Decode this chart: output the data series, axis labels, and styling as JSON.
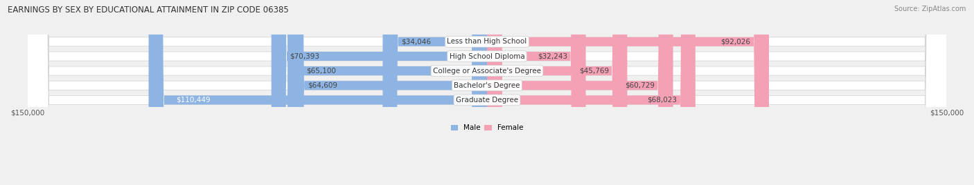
{
  "title": "EARNINGS BY SEX BY EDUCATIONAL ATTAINMENT IN ZIP CODE 06385",
  "source": "Source: ZipAtlas.com",
  "categories": [
    "Less than High School",
    "High School Diploma",
    "College or Associate's Degree",
    "Bachelor's Degree",
    "Graduate Degree"
  ],
  "male_values": [
    34046,
    70393,
    65100,
    64609,
    110449
  ],
  "female_values": [
    92026,
    32243,
    45769,
    60729,
    68023
  ],
  "male_color": "#8db4e2",
  "female_color": "#f4a0b5",
  "max_val": 150000,
  "bg_color": "#f0f0f0",
  "title_fontsize": 8.5,
  "label_fontsize": 7.5,
  "source_fontsize": 7
}
